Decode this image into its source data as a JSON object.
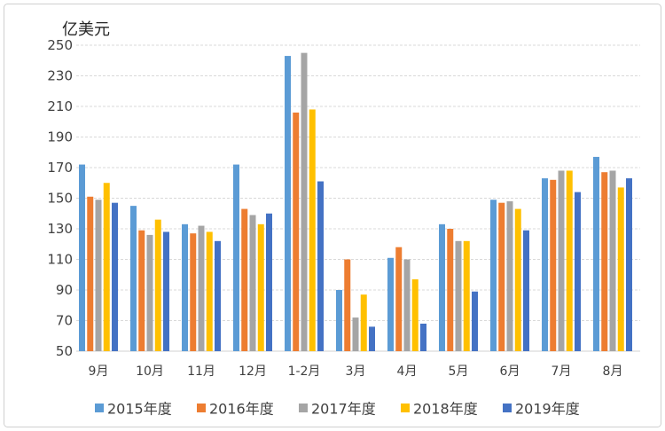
{
  "chart_data": {
    "type": "bar",
    "ylabel": "亿美元",
    "categories": [
      "9月",
      "10月",
      "11月",
      "12月",
      "1-2月",
      "3月",
      "4月",
      "5月",
      "6月",
      "7月",
      "8月"
    ],
    "series": [
      {
        "name": "2015年度",
        "color": "#5B9BD5",
        "values": [
          172,
          145,
          133,
          172,
          243,
          90,
          111,
          133,
          149,
          163,
          177
        ]
      },
      {
        "name": "2016年度",
        "color": "#ED7D31",
        "values": [
          151,
          129,
          127,
          143,
          206,
          110,
          118,
          130,
          147,
          162,
          167
        ]
      },
      {
        "name": "2017年度",
        "color": "#A5A5A5",
        "values": [
          149,
          126,
          132,
          139,
          245,
          72,
          110,
          122,
          148,
          168,
          168
        ]
      },
      {
        "name": "2018年度",
        "color": "#FFC000",
        "values": [
          160,
          136,
          128,
          133,
          208,
          87,
          97,
          122,
          143,
          168,
          157
        ]
      },
      {
        "name": "2019年度",
        "color": "#4472C4",
        "values": [
          147,
          128,
          122,
          140,
          161,
          66,
          68,
          89,
          129,
          154,
          163
        ]
      }
    ],
    "ylim": [
      50,
      250
    ],
    "yticks": [
      50,
      70,
      90,
      110,
      130,
      150,
      170,
      190,
      210,
      230,
      250
    ],
    "grid": true,
    "legend_position": "bottom"
  }
}
